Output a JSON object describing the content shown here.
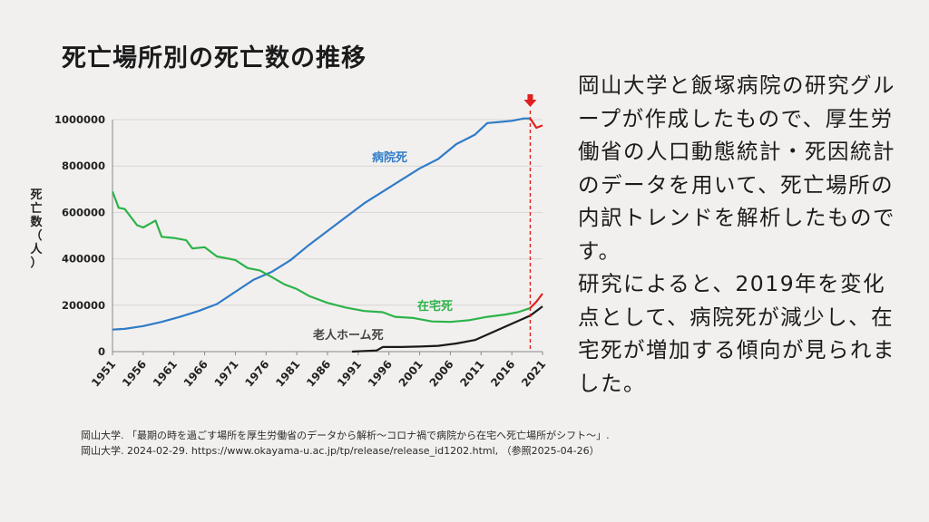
{
  "title": "死亡場所別の死亡数の推移",
  "description": [
    "岡山大学と飯塚病院の研究グループが作成したもので、厚生労働省の人口動態統計・死因統計のデータを用いて、死亡場所の内訳トレンドを解析したものです。",
    "研究によると、2019年を変化点として、病院死が減少し、在宅死が増加する傾向が見られました。"
  ],
  "footer": {
    "line1": "岡山大学. 「最期の時を過ごす場所を厚生労働省のデータから解析〜コロナ禍で病院から在宅へ死亡場所がシフト〜」.",
    "line2": "岡山大学. 2024-02-29. https://www.okayama-u.ac.jp/tp/release/release_id1202.html, （参照2025-04-26）"
  },
  "chart_data": {
    "type": "line",
    "ylabel": "死亡数（人）",
    "ylim": [
      0,
      1000000
    ],
    "yticks": [
      0,
      200000,
      400000,
      600000,
      800000,
      1000000
    ],
    "ytick_labels": [
      "0",
      "200000",
      "400000",
      "600000",
      "800000",
      "1000000"
    ],
    "xlim": [
      1951,
      2021
    ],
    "xticks": [
      1951,
      1956,
      1961,
      1966,
      1971,
      1976,
      1981,
      1986,
      1991,
      1996,
      2001,
      2006,
      2011,
      2016,
      2021
    ],
    "changepoint_year": 2019,
    "changepoint_color": "#e02020",
    "series": [
      {
        "name": "病院死",
        "color": "#2f7bc8",
        "after_change_color": "#e02020",
        "points": [
          [
            1951,
            95000
          ],
          [
            1953,
            98000
          ],
          [
            1956,
            110000
          ],
          [
            1959,
            128000
          ],
          [
            1962,
            150000
          ],
          [
            1965,
            175000
          ],
          [
            1968,
            205000
          ],
          [
            1971,
            258000
          ],
          [
            1974,
            310000
          ],
          [
            1977,
            345000
          ],
          [
            1980,
            395000
          ],
          [
            1983,
            460000
          ],
          [
            1986,
            520000
          ],
          [
            1989,
            580000
          ],
          [
            1992,
            640000
          ],
          [
            1995,
            690000
          ],
          [
            1998,
            740000
          ],
          [
            2001,
            790000
          ],
          [
            2004,
            830000
          ],
          [
            2007,
            895000
          ],
          [
            2010,
            935000
          ],
          [
            2012,
            985000
          ],
          [
            2014,
            990000
          ],
          [
            2016,
            995000
          ],
          [
            2018,
            1005000
          ],
          [
            2019,
            1005000
          ],
          [
            2020,
            965000
          ],
          [
            2021,
            975000
          ]
        ]
      },
      {
        "name": "在宅死",
        "color": "#2db34a",
        "after_change_color": "#e02020",
        "points": [
          [
            1951,
            690000
          ],
          [
            1952,
            620000
          ],
          [
            1953,
            615000
          ],
          [
            1955,
            545000
          ],
          [
            1956,
            535000
          ],
          [
            1958,
            565000
          ],
          [
            1959,
            495000
          ],
          [
            1961,
            490000
          ],
          [
            1963,
            480000
          ],
          [
            1964,
            445000
          ],
          [
            1966,
            450000
          ],
          [
            1968,
            410000
          ],
          [
            1971,
            395000
          ],
          [
            1973,
            360000
          ],
          [
            1975,
            350000
          ],
          [
            1977,
            320000
          ],
          [
            1979,
            290000
          ],
          [
            1981,
            270000
          ],
          [
            1983,
            240000
          ],
          [
            1986,
            210000
          ],
          [
            1989,
            190000
          ],
          [
            1992,
            175000
          ],
          [
            1995,
            170000
          ],
          [
            1997,
            150000
          ],
          [
            2000,
            145000
          ],
          [
            2003,
            130000
          ],
          [
            2006,
            128000
          ],
          [
            2009,
            135000
          ],
          [
            2012,
            150000
          ],
          [
            2015,
            160000
          ],
          [
            2017,
            170000
          ],
          [
            2019,
            188000
          ],
          [
            2020,
            215000
          ],
          [
            2021,
            250000
          ]
        ]
      },
      {
        "name": "老人ホーム死",
        "color": "#1a1a1a",
        "after_change_color": "#1a1a1a",
        "points": [
          [
            1990,
            0
          ],
          [
            1994,
            5000
          ],
          [
            1995,
            20000
          ],
          [
            1998,
            20000
          ],
          [
            2001,
            22000
          ],
          [
            2004,
            25000
          ],
          [
            2007,
            35000
          ],
          [
            2010,
            50000
          ],
          [
            2013,
            85000
          ],
          [
            2016,
            120000
          ],
          [
            2019,
            155000
          ],
          [
            2021,
            195000
          ]
        ]
      }
    ],
    "series_labels": [
      "病院死",
      "在宅死",
      "老人ホーム死"
    ]
  }
}
